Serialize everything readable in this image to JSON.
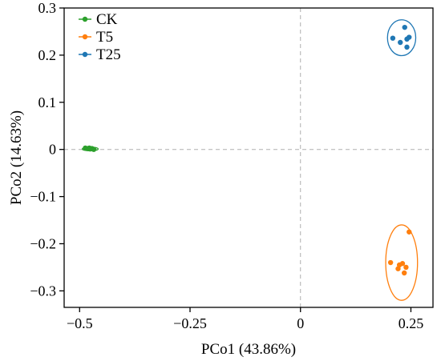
{
  "chart_data": {
    "type": "scatter",
    "xlabel": "PCo1 (43.86%)",
    "ylabel": "PCo2 (14.63%)",
    "xlim": [
      -0.535,
      0.3
    ],
    "ylim": [
      -0.335,
      0.3
    ],
    "x_ticks": [
      -0.5,
      -0.25,
      0,
      0.25
    ],
    "x_tick_labels": [
      "−0.5",
      "−0.25",
      "0",
      "0.25"
    ],
    "y_ticks": [
      0.3,
      0.2,
      0.1,
      0,
      -0.1,
      -0.2,
      -0.3
    ],
    "y_tick_labels": [
      "0.3",
      "0.2",
      "0.1",
      "0",
      "−0.1",
      "−0.2",
      "−0.3"
    ],
    "reference_lines": {
      "x": 0,
      "y": 0,
      "style": "dashed"
    },
    "legend_position": "top-left",
    "series": [
      {
        "name": "CK",
        "color": "#2ca02c",
        "points": [
          [
            -0.487,
            0.003
          ],
          [
            -0.481,
            0.002
          ],
          [
            -0.476,
            0.001
          ],
          [
            -0.472,
            0.002
          ],
          [
            -0.468,
            0.0
          ],
          [
            -0.478,
            0.003
          ]
        ],
        "ellipse": {
          "cx": -0.476,
          "cy": 0.001,
          "rx": 0.018,
          "ry": 0.004
        }
      },
      {
        "name": "T5",
        "color": "#ff7f0e",
        "points": [
          [
            0.246,
            -0.175
          ],
          [
            0.204,
            -0.24
          ],
          [
            0.224,
            -0.245
          ],
          [
            0.231,
            -0.242
          ],
          [
            0.239,
            -0.25
          ],
          [
            0.221,
            -0.253
          ],
          [
            0.235,
            -0.262
          ]
        ],
        "ellipse": {
          "cx": 0.229,
          "cy": -0.24,
          "rx": 0.036,
          "ry": 0.08
        }
      },
      {
        "name": "T25",
        "color": "#1f77b4",
        "points": [
          [
            0.209,
            0.236
          ],
          [
            0.226,
            0.227
          ],
          [
            0.236,
            0.259
          ],
          [
            0.241,
            0.234
          ],
          [
            0.246,
            0.238
          ],
          [
            0.241,
            0.217
          ]
        ],
        "ellipse": {
          "cx": 0.229,
          "cy": 0.237,
          "rx": 0.032,
          "ry": 0.038
        }
      }
    ]
  }
}
